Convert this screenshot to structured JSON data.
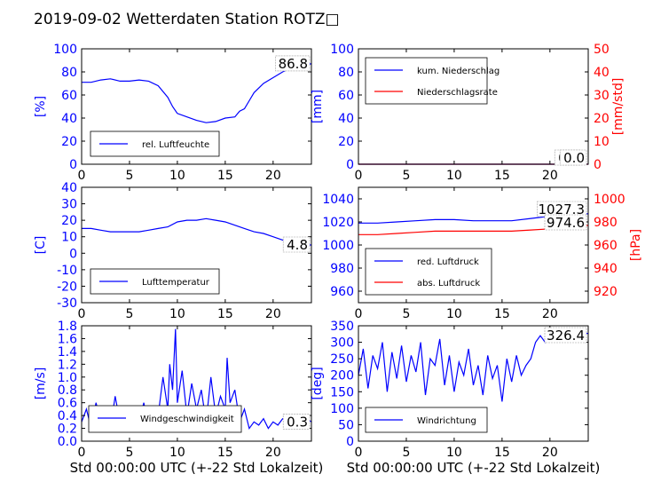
{
  "title": "2019-09-02 Wetterdaten Station ROTZ□",
  "colors": {
    "left_axis": "#0000ff",
    "right_axis": "#ff0000",
    "line_blue": "#0000ff",
    "line_red": "#ff0000"
  },
  "chart_data": [
    {
      "id": "humidity",
      "type": "line",
      "ylabel": "[%]",
      "xlim": [
        0,
        24
      ],
      "ylim": [
        0,
        100
      ],
      "xticks": [
        "0",
        "5",
        "10",
        "15",
        "20"
      ],
      "yticks": [
        "0",
        "20",
        "40",
        "60",
        "80",
        "100"
      ],
      "legend": [
        {
          "name": "rel. Luftfeuchte",
          "color": "#0000ff"
        }
      ],
      "legend_position": "lower-left",
      "end_value": "86.8",
      "series": [
        {
          "name": "rel. Luftfeuchte",
          "color": "#0000ff",
          "x": [
            0,
            1,
            2,
            3,
            4,
            5,
            6,
            7,
            8,
            9,
            9.5,
            10,
            11,
            12,
            13,
            14,
            15,
            16,
            16.5,
            17,
            17.5,
            18,
            19,
            20,
            21,
            22,
            23,
            24
          ],
          "y": [
            71,
            71,
            73,
            74,
            72,
            72,
            73,
            72,
            68,
            58,
            50,
            44,
            41,
            38,
            36,
            37,
            40,
            41,
            46,
            48,
            55,
            62,
            70,
            75,
            80,
            84,
            86,
            87
          ]
        }
      ]
    },
    {
      "id": "precipitation",
      "type": "line",
      "ylabel": "[mm]",
      "ylabel_right": "[mm/std]",
      "xlim": [
        0,
        24
      ],
      "ylim": [
        0,
        100
      ],
      "ylim_right": [
        0,
        50
      ],
      "xticks": [
        "0",
        "5",
        "10",
        "15",
        "20"
      ],
      "yticks": [
        "0",
        "20",
        "40",
        "60",
        "80",
        "100"
      ],
      "yticks_right": [
        "0",
        "10",
        "20",
        "30",
        "40",
        "50"
      ],
      "legend": [
        {
          "name": "kum. Niederschlag",
          "color": "#0000ff"
        },
        {
          "name": "Niederschlagsrate",
          "color": "#ff0000"
        }
      ],
      "legend_position": "upper-left",
      "end_value_1": "0.0",
      "end_value_2": "0.0",
      "series": [
        {
          "name": "kum. Niederschlag",
          "color": "#0000ff",
          "x": [
            0,
            24
          ],
          "y": [
            0,
            0
          ]
        },
        {
          "name": "Niederschlagsrate",
          "color": "#ff0000",
          "x": [
            0,
            24
          ],
          "y": [
            0,
            0
          ]
        }
      ]
    },
    {
      "id": "temperature",
      "type": "line",
      "ylabel": "[C]",
      "xlim": [
        0,
        24
      ],
      "ylim": [
        -30,
        40
      ],
      "xticks": [
        "0",
        "5",
        "10",
        "15",
        "20"
      ],
      "yticks": [
        "-30",
        "-20",
        "-10",
        "0",
        "10",
        "20",
        "30",
        "40"
      ],
      "legend": [
        {
          "name": "Lufttemperatur",
          "color": "#0000ff"
        }
      ],
      "legend_position": "lower-left",
      "end_value": "4.8",
      "series": [
        {
          "name": "Lufttemperatur",
          "color": "#0000ff",
          "x": [
            0,
            1,
            2,
            3,
            4,
            5,
            6,
            7,
            8,
            9,
            10,
            11,
            12,
            13,
            14,
            15,
            16,
            17,
            18,
            19,
            20,
            21,
            22,
            23,
            24
          ],
          "y": [
            15,
            15,
            14,
            13,
            13,
            13,
            13,
            14,
            15,
            16,
            19,
            20,
            20,
            21,
            20,
            19,
            17,
            15,
            13,
            12,
            10,
            8,
            6,
            5,
            5
          ]
        }
      ]
    },
    {
      "id": "pressure",
      "type": "line",
      "ylabel": "[hPa]",
      "ylabel_side": "right",
      "xlim": [
        0,
        24
      ],
      "ylim": [
        950,
        1050
      ],
      "ylim_right": [
        910,
        1010
      ],
      "xticks": [
        "0",
        "5",
        "10",
        "15",
        "20"
      ],
      "yticks": [
        "960",
        "980",
        "1000",
        "1020",
        "1040"
      ],
      "yticks_right": [
        "920",
        "940",
        "960",
        "980",
        "1000"
      ],
      "legend": [
        {
          "name": "red. Luftdruck",
          "color": "#0000ff"
        },
        {
          "name": "abs. Luftdruck",
          "color": "#ff0000"
        }
      ],
      "legend_position": "lower-left",
      "end_value_1": "1027.3",
      "end_value_2": "974.6",
      "series": [
        {
          "name": "red. Luftdruck",
          "color": "#0000ff",
          "x": [
            0,
            2,
            4,
            6,
            8,
            10,
            12,
            14,
            16,
            18,
            20,
            22,
            24
          ],
          "y": [
            1019,
            1019,
            1020,
            1021,
            1022,
            1022,
            1021,
            1021,
            1021,
            1023,
            1025,
            1027,
            1027
          ]
        },
        {
          "name": "abs. Luftdruck",
          "color": "#ff0000",
          "x": [
            0,
            2,
            4,
            6,
            8,
            10,
            12,
            14,
            16,
            18,
            20,
            22,
            24
          ],
          "y": [
            1009,
            1009,
            1010,
            1011,
            1012,
            1012,
            1012,
            1012,
            1012,
            1013,
            1014,
            1016,
            1017
          ]
        }
      ]
    },
    {
      "id": "wind_speed",
      "type": "line",
      "ylabel": "[m/s]",
      "xlabel": "Std 00:00:00 UTC (+-22 Std Lokalzeit)",
      "xlim": [
        0,
        24
      ],
      "ylim": [
        0,
        1.8
      ],
      "xticks": [
        "0",
        "5",
        "10",
        "15",
        "20"
      ],
      "yticks": [
        "0.0",
        "0.2",
        "0.4",
        "0.6",
        "0.8",
        "1.0",
        "1.2",
        "1.4",
        "1.6",
        "1.8"
      ],
      "legend": [
        {
          "name": "Windgeschwindigkeit",
          "color": "#0000ff"
        }
      ],
      "legend_position": "lower-left",
      "end_value": "0.3",
      "series": [
        {
          "name": "Windgeschwindigkeit",
          "color": "#0000ff",
          "x": [
            0,
            0.5,
            1,
            1.5,
            2,
            2.5,
            3,
            3.5,
            4,
            4.5,
            5,
            5.5,
            6,
            6.5,
            7,
            7.5,
            8,
            8.5,
            9,
            9.2,
            9.5,
            9.8,
            10,
            10.5,
            11,
            11.5,
            12,
            12.5,
            13,
            13.5,
            14,
            14.5,
            15,
            15.2,
            15.5,
            16,
            16.5,
            17,
            17.5,
            18,
            18.5,
            19,
            19.5,
            20,
            20.5,
            21,
            21.5,
            22,
            22.5,
            23,
            23.5,
            24
          ],
          "y": [
            0.3,
            0.5,
            0.2,
            0.6,
            0.3,
            0.5,
            0.2,
            0.7,
            0.3,
            0.4,
            0.2,
            0.5,
            0.3,
            0.6,
            0.2,
            0.5,
            0.4,
            1.0,
            0.5,
            1.2,
            0.8,
            1.75,
            0.6,
            1.1,
            0.4,
            0.9,
            0.5,
            0.8,
            0.3,
            1.0,
            0.4,
            0.7,
            0.5,
            1.3,
            0.6,
            0.8,
            0.3,
            0.5,
            0.2,
            0.3,
            0.25,
            0.35,
            0.2,
            0.3,
            0.25,
            0.35,
            0.3,
            0.4,
            0.25,
            0.3,
            0.35,
            0.3
          ]
        }
      ]
    },
    {
      "id": "wind_direction",
      "type": "line",
      "ylabel": "[deg]",
      "xlabel": "Std 00:00:00 UTC (+-22 Std Lokalzeit)",
      "xlim": [
        0,
        24
      ],
      "ylim": [
        0,
        350
      ],
      "xticks": [
        "0",
        "5",
        "10",
        "15",
        "20"
      ],
      "yticks": [
        "0",
        "50",
        "100",
        "150",
        "200",
        "250",
        "300",
        "350"
      ],
      "legend": [
        {
          "name": "Windrichtung",
          "color": "#0000ff"
        }
      ],
      "legend_position": "lower-left",
      "end_value": "326.4",
      "series": [
        {
          "name": "Windrichtung",
          "color": "#0000ff",
          "x": [
            0,
            0.5,
            1,
            1.5,
            2,
            2.5,
            3,
            3.5,
            4,
            4.5,
            5,
            5.5,
            6,
            6.5,
            7,
            7.5,
            8,
            8.5,
            9,
            9.5,
            10,
            10.5,
            11,
            11.5,
            12,
            12.5,
            13,
            13.5,
            14,
            14.5,
            15,
            15.5,
            16,
            16.5,
            17,
            17.5,
            18,
            18.5,
            19,
            19.5,
            20,
            20.5,
            21,
            21.5,
            22,
            22.5,
            23,
            23.5,
            24
          ],
          "y": [
            200,
            280,
            160,
            260,
            220,
            300,
            150,
            270,
            190,
            290,
            180,
            260,
            210,
            300,
            140,
            250,
            230,
            310,
            170,
            260,
            150,
            240,
            200,
            280,
            170,
            230,
            140,
            260,
            190,
            230,
            120,
            250,
            180,
            260,
            200,
            230,
            250,
            300,
            320,
            300,
            330,
            310,
            320,
            330,
            315,
            325,
            320,
            330,
            326
          ]
        }
      ]
    }
  ]
}
